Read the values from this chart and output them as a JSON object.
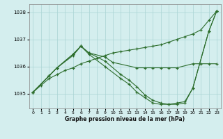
{
  "title": "Graphe pression niveau de la mer (hPa)",
  "background_color": "#d4eeee",
  "grid_color": "#aad4d4",
  "line_color": "#2d6e2d",
  "xlim": [
    -0.5,
    23.5
  ],
  "ylim": [
    1034.45,
    1038.3
  ],
  "yticks": [
    1035,
    1036,
    1037,
    1038
  ],
  "xticks": [
    0,
    1,
    2,
    3,
    4,
    5,
    6,
    7,
    8,
    9,
    10,
    11,
    12,
    13,
    14,
    15,
    16,
    17,
    18,
    19,
    20,
    21,
    22,
    23
  ],
  "line1_x": [
    0,
    1,
    2,
    3,
    4,
    5,
    6,
    7,
    8,
    9,
    10,
    11,
    12,
    13,
    14,
    15,
    16,
    17,
    18,
    19,
    20,
    21,
    22,
    23
  ],
  "line1_y": [
    1035.05,
    1035.3,
    1035.55,
    1035.7,
    1035.85,
    1035.95,
    1036.1,
    1036.2,
    1036.3,
    1036.4,
    1036.5,
    1036.55,
    1036.6,
    1036.65,
    1036.7,
    1036.75,
    1036.8,
    1036.9,
    1037.0,
    1037.1,
    1037.2,
    1037.35,
    1037.7,
    1038.05
  ],
  "line2_x": [
    0,
    2,
    3,
    5,
    6,
    7,
    9,
    10,
    13,
    14,
    15,
    16,
    17,
    18,
    20,
    21,
    22,
    23
  ],
  "line2_y": [
    1035.05,
    1035.65,
    1035.95,
    1036.45,
    1036.75,
    1036.5,
    1036.35,
    1036.15,
    1035.95,
    1035.95,
    1035.95,
    1035.95,
    1035.95,
    1035.95,
    1036.1,
    1036.1,
    1036.1,
    1036.1
  ],
  "line3_x": [
    0,
    2,
    3,
    5,
    6,
    7,
    9,
    11,
    12,
    13,
    14,
    15,
    16,
    17,
    18,
    19,
    20,
    22,
    23
  ],
  "line3_y": [
    1035.05,
    1035.65,
    1035.95,
    1036.45,
    1036.75,
    1036.5,
    1036.2,
    1035.7,
    1035.5,
    1035.25,
    1034.95,
    1034.75,
    1034.65,
    1034.6,
    1034.6,
    1034.65,
    1035.2,
    1037.3,
    1038.05
  ],
  "line4_x": [
    0,
    2,
    3,
    5,
    6,
    7,
    9,
    11,
    12,
    13,
    14,
    15,
    16,
    17,
    18,
    19,
    20,
    22,
    23
  ],
  "line4_y": [
    1035.05,
    1035.65,
    1035.95,
    1036.4,
    1036.75,
    1036.45,
    1036.0,
    1035.55,
    1035.35,
    1035.05,
    1034.85,
    1034.65,
    1034.6,
    1034.6,
    1034.65,
    1034.7,
    1035.2,
    1037.3,
    1038.05
  ]
}
